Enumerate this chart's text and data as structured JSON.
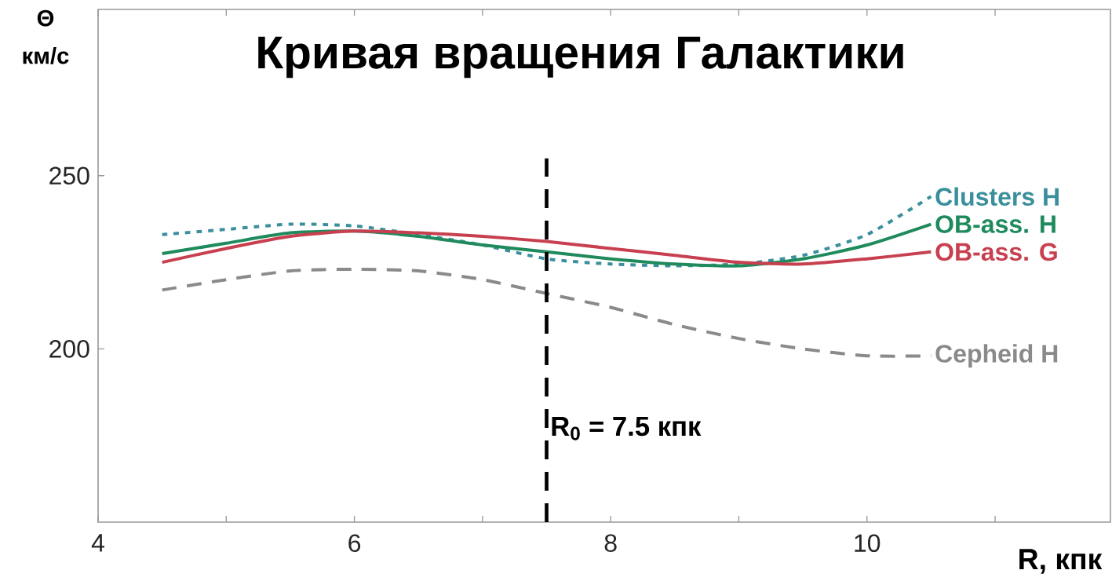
{
  "chart_data": {
    "type": "line",
    "title": "Кривая вращения Галактики",
    "xlabel": "R, кпк",
    "ylabel": "Θ км/с",
    "x": [
      4.5,
      5,
      5.5,
      6,
      6.5,
      7,
      7.5,
      8,
      8.5,
      9,
      9.5,
      10,
      10.5
    ],
    "series": [
      {
        "name": "Clusters H",
        "color": "#3a8f9c",
        "line_style": "dotted",
        "values": [
          233,
          234.5,
          236,
          235.5,
          233,
          230,
          226,
          224.5,
          224,
          224.5,
          227,
          233,
          244
        ]
      },
      {
        "name": "OB-ass. H",
        "color": "#1f8a5c",
        "line_style": "solid",
        "values": [
          227.5,
          230.5,
          233.5,
          234,
          232.5,
          230,
          228,
          226,
          224.5,
          224,
          226,
          230,
          236
        ]
      },
      {
        "name": "OB-ass. G",
        "color": "#c8404f",
        "line_style": "solid",
        "values": [
          225,
          229,
          232.5,
          234,
          233.5,
          232.5,
          231,
          229,
          227,
          225,
          224.5,
          226,
          228
        ]
      },
      {
        "name": "Cepheid  H",
        "color": "#8a8a8a",
        "line_style": "dashed",
        "values": [
          217,
          220,
          222.5,
          223,
          222.5,
          220,
          216,
          212,
          207,
          203,
          200,
          198,
          198
        ]
      }
    ],
    "xlim": [
      4,
      11.9
    ],
    "ylim": [
      150,
      298
    ],
    "xticks": [
      4,
      {
        "value": 5,
        "label": null
      },
      6,
      {
        "value": 7,
        "label": null
      },
      8,
      {
        "value": 9,
        "label": null
      },
      10,
      {
        "value": 11,
        "label": null
      }
    ],
    "yticks": [
      200,
      250
    ],
    "ref_lines": [
      {
        "axis": "x",
        "value": 7.5,
        "label": "R$_{0}$ = 7.5 кпк",
        "color": "#000000",
        "line_style": "dashed"
      }
    ],
    "grid": false,
    "marker": "none"
  }
}
